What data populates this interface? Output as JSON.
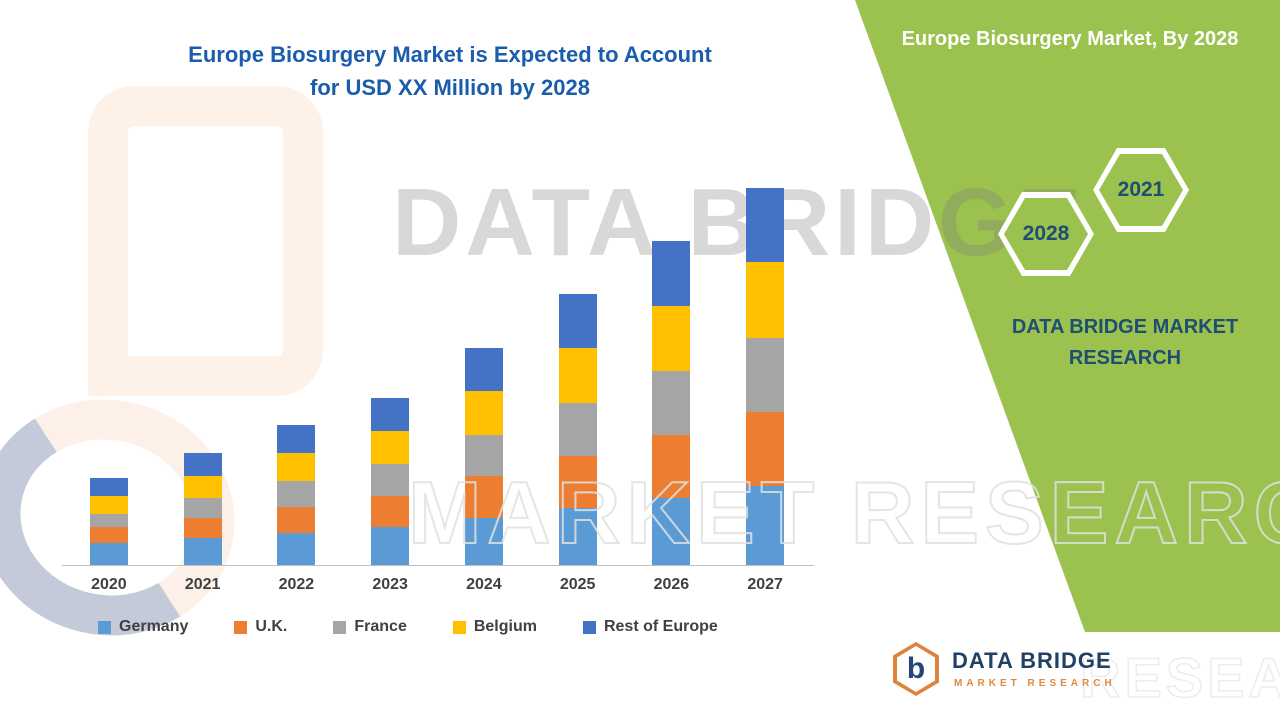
{
  "title": {
    "line1": "Europe Biosurgery Market is Expected to Account",
    "line2": "for USD XX Million by 2028"
  },
  "side_panel": {
    "title": "Europe Biosurgery Market, By 2028",
    "hex_back": "2028",
    "hex_front": "2021",
    "brand_line1": "DATA BRIDGE MARKET",
    "brand_line2": "RESEARCH"
  },
  "watermark": {
    "line1": "DATA BRIDGE",
    "line2": "MARKET RESEARCH",
    "footer": "RESEARCH"
  },
  "footer_logo": {
    "monogram": "b",
    "name": "DATA BRIDGE",
    "subtitle": "MARKET RESEARCH"
  },
  "colors": {
    "panel_green": "#9BC14F",
    "title_blue": "#1B5CAB",
    "navy": "#1F4E74",
    "axis_line": "#BFBFBF"
  },
  "chart_data": {
    "type": "bar",
    "stacked": true,
    "title": "Europe Biosurgery Market is Expected to Account for USD XX Million by 2028",
    "xlabel": "",
    "ylabel": "",
    "value_unit": "USD XX Million (values not labeled on chart)",
    "ylim": [
      0,
      400
    ],
    "grid": false,
    "y_axis_visible": false,
    "legend_position": "bottom",
    "categories": [
      "2020",
      "2021",
      "2022",
      "2023",
      "2024",
      "2025",
      "2026",
      "2027"
    ],
    "series": [
      {
        "name": "Germany",
        "color": "#5B9BD5",
        "values": [
          22,
          27,
          32,
          38,
          48,
          58,
          68,
          80
        ]
      },
      {
        "name": "U.K.",
        "color": "#ED7D31",
        "values": [
          16,
          21,
          27,
          32,
          42,
          52,
          64,
          75
        ]
      },
      {
        "name": "France",
        "color": "#A5A5A5",
        "values": [
          14,
          20,
          26,
          32,
          42,
          54,
          64,
          75
        ]
      },
      {
        "name": "Belgium",
        "color": "#FFC000",
        "values": [
          18,
          22,
          28,
          34,
          44,
          56,
          66,
          77
        ]
      },
      {
        "name": "Rest of Europe",
        "color": "#4472C4",
        "values": [
          18,
          23,
          29,
          33,
          44,
          54,
          66,
          75
        ]
      }
    ]
  }
}
